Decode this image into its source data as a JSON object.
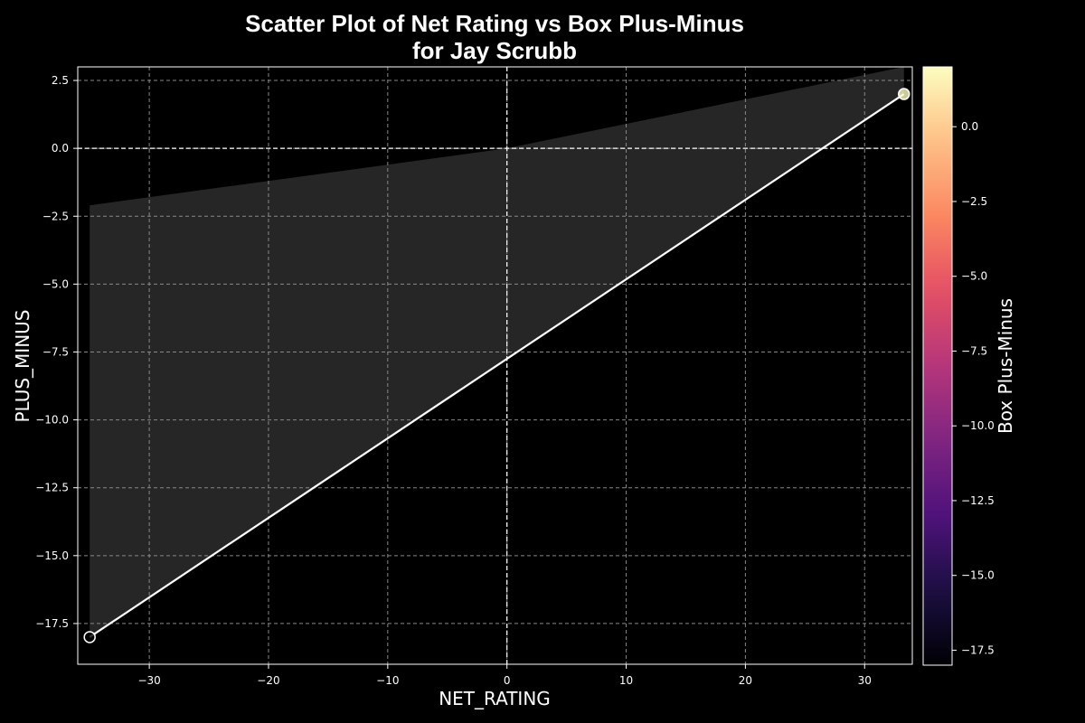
{
  "chart_data": {
    "type": "scatter",
    "title_line1": "Scatter Plot of Net Rating vs Box Plus-Minus",
    "title_line2": "for Jay Scrubb",
    "xlabel": "NET_RATING",
    "ylabel": "PLUS_MINUS",
    "colorbar_label": "Box Plus-Minus",
    "xlim": [
      -36,
      34
    ],
    "ylim": [
      -19,
      3
    ],
    "x_ticks": [
      -30,
      -20,
      -10,
      0,
      10,
      20,
      30
    ],
    "y_ticks": [
      2.5,
      0.0,
      -2.5,
      -5.0,
      -7.5,
      -10.0,
      -12.5,
      -15.0,
      -17.5
    ],
    "colorbar_ticks": [
      0.0,
      -2.5,
      -5.0,
      -7.5,
      -10.0,
      -12.5,
      -15.0,
      -17.5
    ],
    "colorbar_range": [
      -18,
      2
    ],
    "colormap": "magma",
    "grid": true,
    "reference_lines": {
      "x": 0,
      "y": 0
    },
    "points": [
      {
        "x": -35.0,
        "y": -18.0,
        "color_value": -18.0
      },
      {
        "x": 33.3,
        "y": 2.0,
        "color_value": 2.0
      }
    ],
    "regression_line": {
      "x": [
        -35.0,
        33.3
      ],
      "y": [
        -18.0,
        2.0
      ]
    },
    "confidence_band": {
      "x": [
        -35.0,
        0.0,
        33.3
      ],
      "upper": [
        -2.1,
        0.0,
        3.0
      ],
      "lower": [
        -18.0,
        -7.75,
        2.0
      ]
    },
    "colors": {
      "background": "#000000",
      "line": "#ffffff",
      "band": "#262626",
      "grid": "#888888"
    }
  }
}
